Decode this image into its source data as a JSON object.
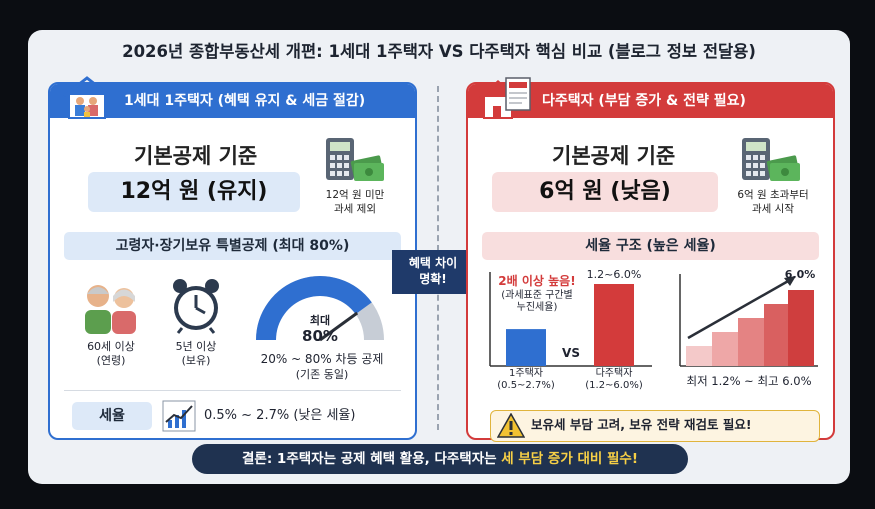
{
  "title": "2026년 종합부동산세 개편: 1세대 1주택자 VS 다주택자 핵심 비교 (블로그 정보 전달용)",
  "left": {
    "header": "1세대 1주택자 (혜택 유지 & 세금 절감)",
    "deduction_title": "기본공제 기준",
    "deduction_value": "12억 원 (유지)",
    "deduction_note_1": "12억 원 미만",
    "deduction_note_2": "과세 제외",
    "special_title": "고령자·장기보유 특별공제 (최대 80%)",
    "age_label_1": "60세 이상",
    "age_label_2": "(연령)",
    "hold_label_1": "5년 이상",
    "hold_label_2": "(보유)",
    "gauge_label": "최대",
    "gauge_value": "80%",
    "gauge_level": 0.8,
    "gauge_note_1": "20% ~ 80% 차등 공제",
    "gauge_note_2": "(기존 동일)",
    "rate_title": "세율",
    "rate_value": "0.5% ~ 2.7% (낮은 세율)"
  },
  "middle": {
    "arrow_line_1": "혜택 차이",
    "arrow_line_2": "명확!"
  },
  "right": {
    "header": "다주택자 (부담 증가 & 전략 필요)",
    "deduction_title": "기본공제 기준",
    "deduction_value": "6억 원 (낮음)",
    "deduction_note_1": "6억 원 초과부터",
    "deduction_note_2": "과세 시작",
    "rate_structure_title": "세율 구조 (높은 세율)",
    "compare_highlight": "2배 이상 높음!",
    "compare_sub_1": "(과세표준 구간별",
    "compare_sub_2": "누진세율)",
    "compare_top_label": "1.2~6.0%",
    "vs": "VS",
    "bar1_label_1": "1주택자",
    "bar1_label_2": "(0.5~2.7%)",
    "bar2_label_1": "다주택자",
    "bar2_label_2": "(1.2~6.0%)",
    "stair_top_label": "6.0%",
    "stair_caption": "최저 1.2% ~ 최고 6.0%",
    "warning": "보유세 부담 고려, 보유 전략 재검토 필요!"
  },
  "conclusion": {
    "prefix": "결론: 1주택자는 공제 혜택 활용, 다주택자는",
    "highlight": "세 부담 증가 대비 필수!"
  },
  "colors": {
    "blue": "#2f6fd0",
    "red": "#d33b3b",
    "navy": "#1f3250",
    "highlight": "#f7d046"
  },
  "compare_chart": {
    "single_home_max_rate": 2.7,
    "multi_home_max_rate": 6.0
  }
}
